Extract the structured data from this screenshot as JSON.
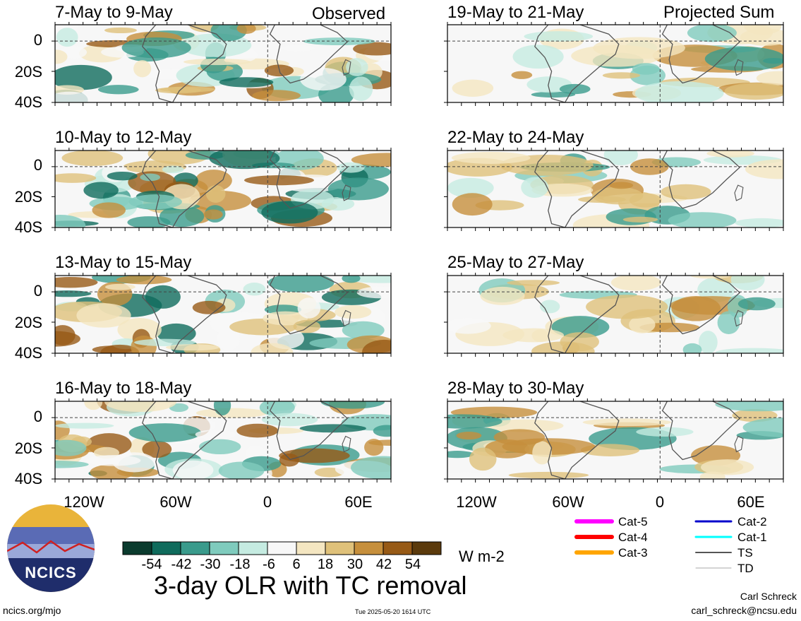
{
  "panels": [
    {
      "id": "p1",
      "label": "7-May to 9-May",
      "tag": "Observed"
    },
    {
      "id": "p2",
      "label": "10-May to 12-May",
      "tag": ""
    },
    {
      "id": "p3",
      "label": "13-May to 15-May",
      "tag": ""
    },
    {
      "id": "p4",
      "label": "16-May to 18-May",
      "tag": ""
    },
    {
      "id": "p5",
      "label": "19-May to 21-May",
      "tag": "Projected Sum"
    },
    {
      "id": "p6",
      "label": "22-May to 24-May",
      "tag": ""
    },
    {
      "id": "p7",
      "label": "25-May to 27-May",
      "tag": ""
    },
    {
      "id": "p8",
      "label": "28-May to 30-May",
      "tag": ""
    }
  ],
  "y_axis": {
    "ticks": [
      "0",
      "20S",
      "40S"
    ]
  },
  "x_axis": {
    "ticks": [
      "120W",
      "60W",
      "0",
      "60E"
    ]
  },
  "colorbar": {
    "colors": [
      "#0b3b2e",
      "#0f6b5c",
      "#3a9b8c",
      "#7fcbbd",
      "#c5ebe1",
      "#f7f7f7",
      "#f4e6c1",
      "#dfc17a",
      "#c68f3c",
      "#975a16",
      "#5b3a0c"
    ],
    "labels": [
      "-54",
      "-42",
      "-30",
      "-18",
      "-6",
      "6",
      "18",
      "30",
      "42",
      "54"
    ],
    "units": "W m-2"
  },
  "title": "3-day OLR with TC removal",
  "legend": [
    {
      "label": "Cat-5",
      "color": "#ff00ff"
    },
    {
      "label": "Cat-4",
      "color": "#ff0000"
    },
    {
      "label": "Cat-3",
      "color": "#ffa500"
    },
    {
      "label": "Cat-2",
      "color": "#0000cc"
    },
    {
      "label": "Cat-1",
      "color": "#00ffff"
    },
    {
      "label": "TS",
      "color": "#555555"
    },
    {
      "label": "TD",
      "color": "#aaaaaa"
    }
  ],
  "logo": {
    "text": "NCICS"
  },
  "footer": {
    "url": "ncics.org/mjo",
    "timestamp": "Tue 2025-05-20 1614 UTC",
    "author": "Carl Schreck",
    "email": "carl_schreck@ncsu.edu"
  }
}
